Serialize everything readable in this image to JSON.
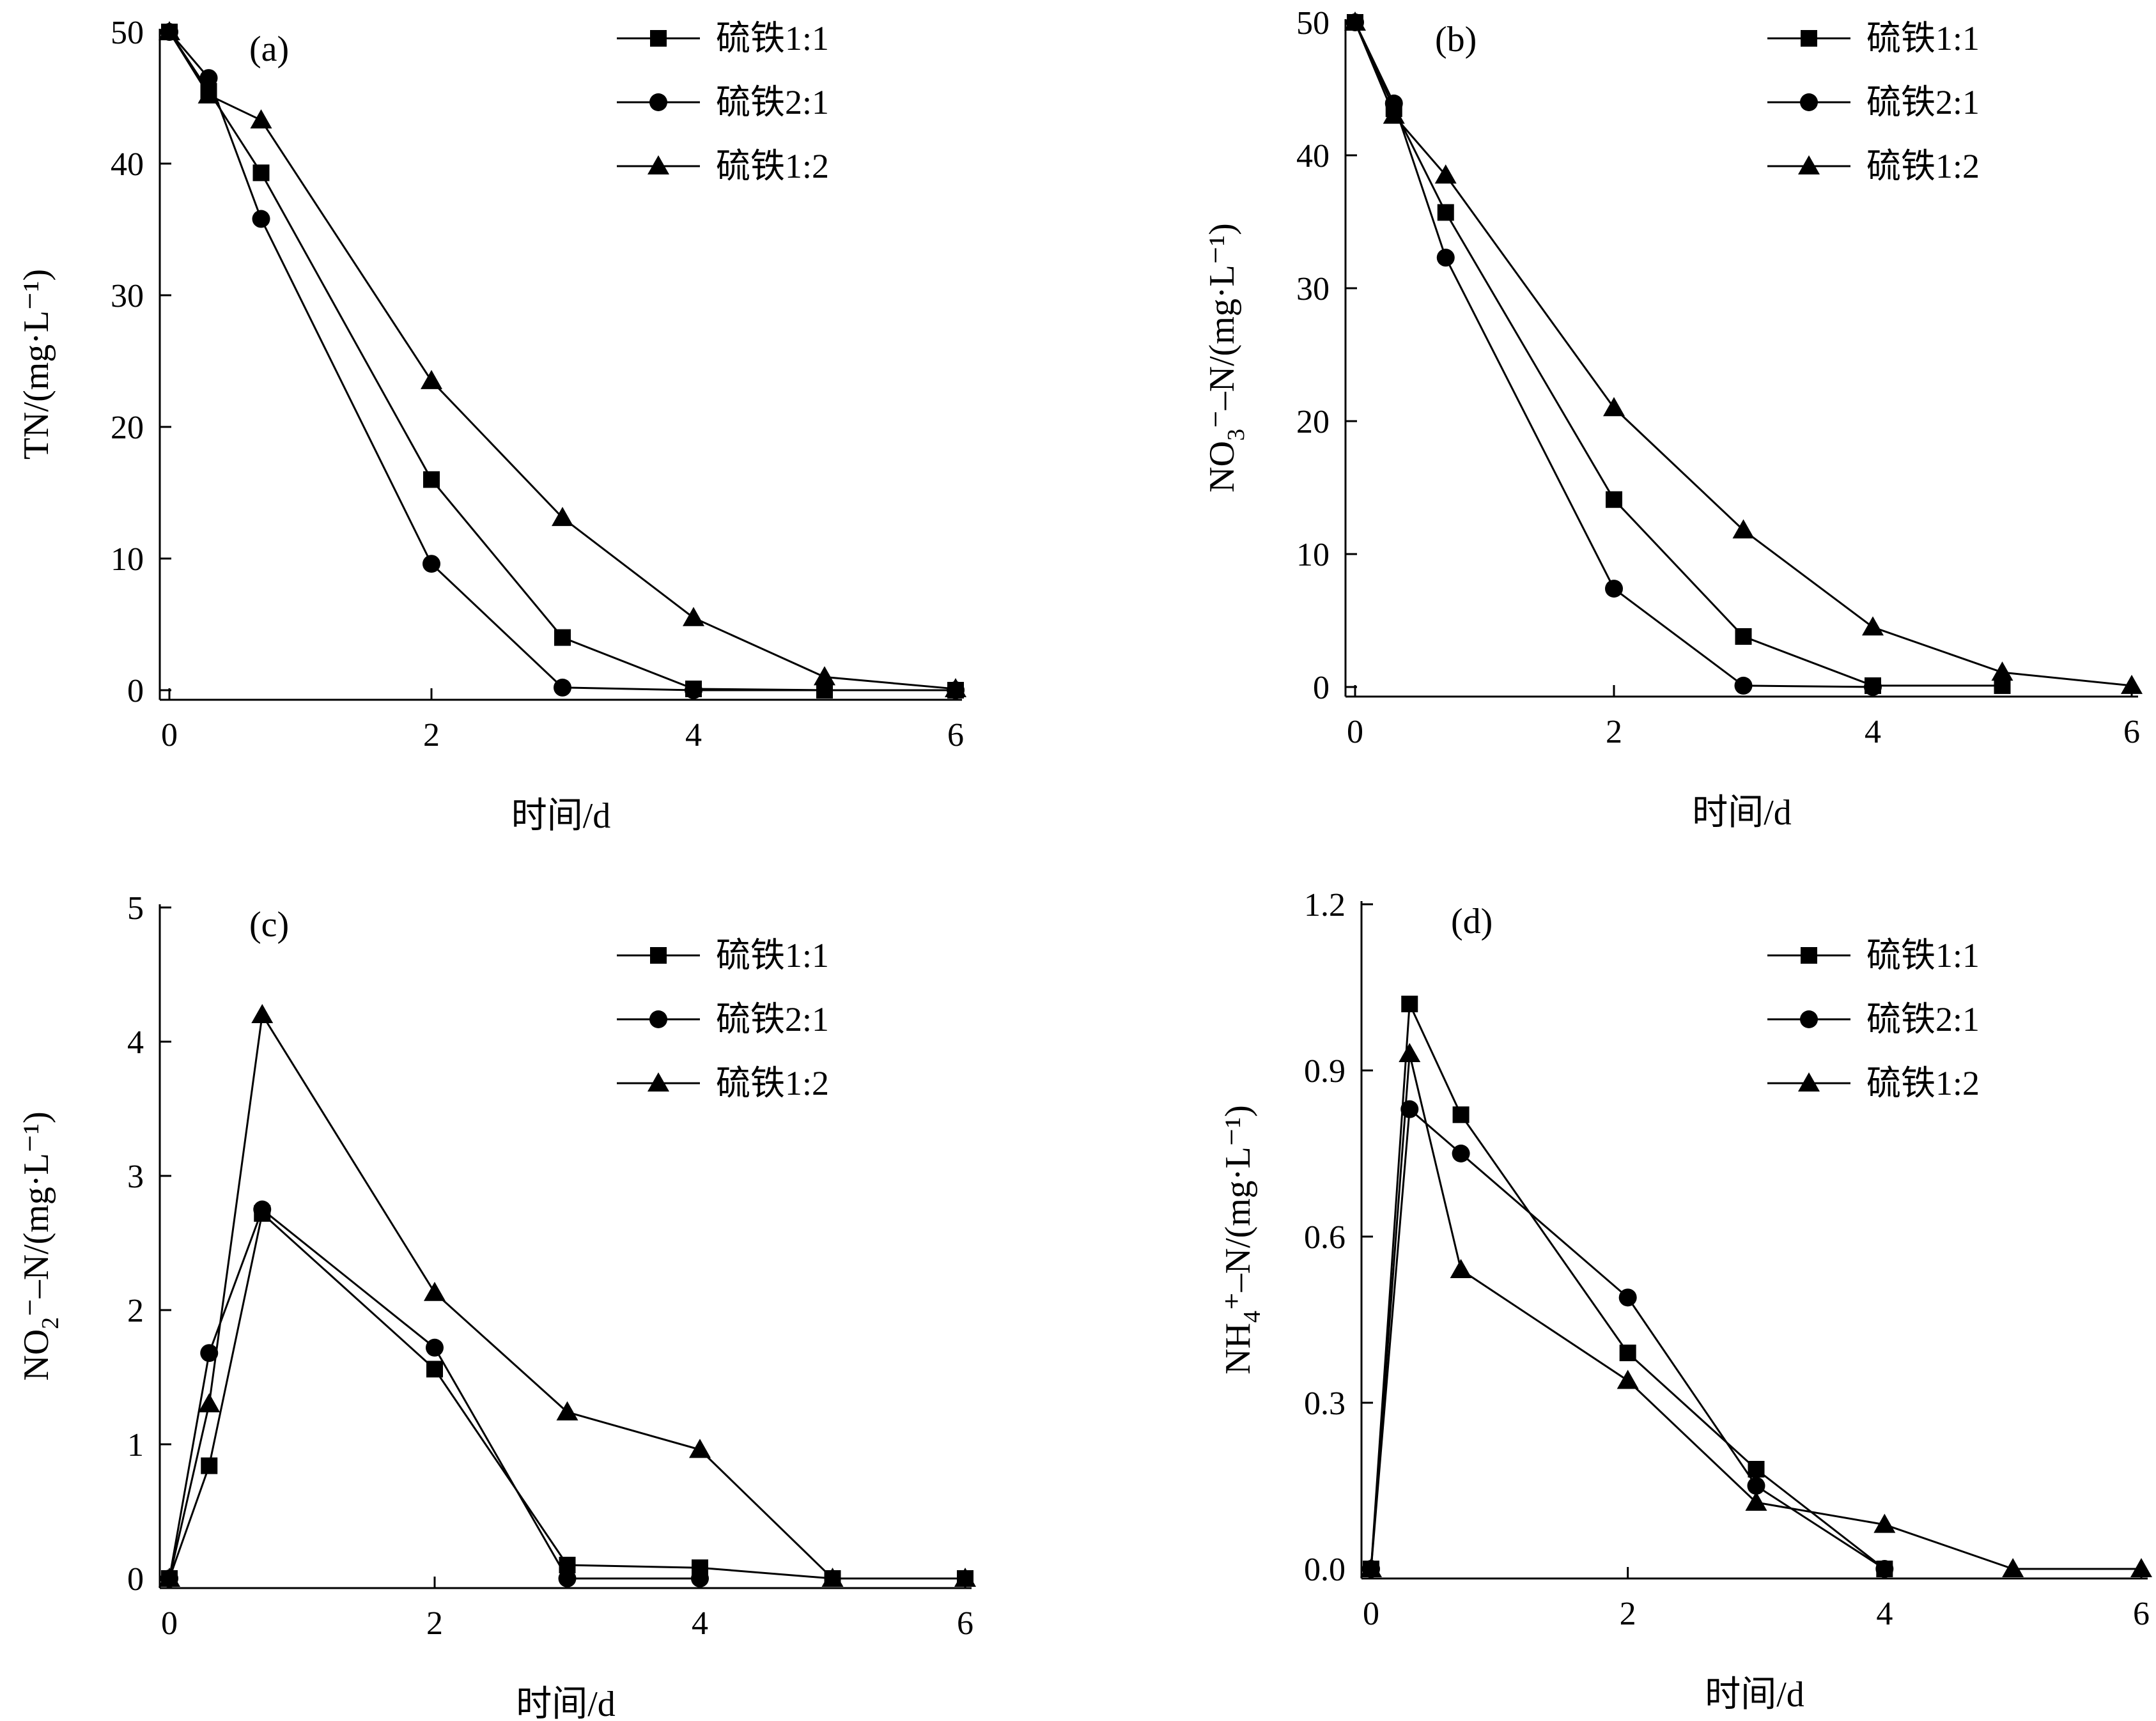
{
  "chart_data": [
    {
      "type": "line",
      "panel_label": "(a)",
      "ylabel": "TN/(mg·L⁻¹)",
      "xlabel": "时间/d",
      "xlim": [
        0,
        6
      ],
      "ylim": [
        0,
        50
      ],
      "xticks": [
        0,
        2,
        4,
        6
      ],
      "yticks": [
        0,
        10,
        20,
        30,
        40,
        50
      ],
      "legend_position": "top-right",
      "series": [
        {
          "name": "硫铁1:1",
          "marker": "square",
          "x": [
            0,
            0.3,
            0.7,
            2,
            3,
            4,
            5,
            6
          ],
          "y": [
            50,
            45.5,
            39.3,
            16.0,
            4.0,
            0.1,
            0.0,
            0.0
          ]
        },
        {
          "name": "硫铁2:1",
          "marker": "circle",
          "x": [
            0,
            0.3,
            0.7,
            2,
            3,
            4,
            6
          ],
          "y": [
            50,
            46.5,
            35.8,
            9.6,
            0.2,
            0.0,
            0.0
          ]
        },
        {
          "name": "硫铁1:2",
          "marker": "triangle",
          "x": [
            0,
            0.3,
            0.7,
            2,
            3,
            4,
            5,
            6
          ],
          "y": [
            50,
            45.2,
            43.3,
            23.5,
            13.1,
            5.5,
            1.0,
            0.1
          ]
        }
      ]
    },
    {
      "type": "line",
      "panel_label": "(b)",
      "ylabel_main": "NO",
      "ylabel_sub": "3",
      "ylabel_rest": "⁻–N/(mg·L⁻¹)",
      "xlabel": "时间/d",
      "xlim": [
        0,
        6
      ],
      "ylim": [
        0,
        50
      ],
      "xticks": [
        0,
        2,
        4,
        6
      ],
      "yticks": [
        0,
        10,
        20,
        30,
        40,
        50
      ],
      "legend_position": "top-right",
      "series": [
        {
          "name": "硫铁1:1",
          "marker": "square",
          "x": [
            0,
            0.3,
            0.7,
            2,
            3,
            4,
            5
          ],
          "y": [
            50,
            43.5,
            35.7,
            14.1,
            3.8,
            0.1,
            0.1
          ]
        },
        {
          "name": "硫铁2:1",
          "marker": "circle",
          "x": [
            0,
            0.3,
            0.7,
            2,
            3,
            4
          ],
          "y": [
            50,
            43.9,
            32.3,
            7.4,
            0.1,
            0.0
          ]
        },
        {
          "name": "硫铁1:2",
          "marker": "triangle",
          "x": [
            0,
            0.3,
            0.7,
            2,
            3,
            4,
            5,
            6
          ],
          "y": [
            50,
            43.0,
            38.5,
            21.0,
            11.8,
            4.5,
            1.1,
            0.1
          ]
        }
      ]
    },
    {
      "type": "line",
      "panel_label": "(c)",
      "ylabel_main": "NO",
      "ylabel_sub": "2",
      "ylabel_rest": "⁻–N/(mg·L⁻¹)",
      "xlabel": "时间/d",
      "xlim": [
        0,
        6
      ],
      "ylim": [
        0,
        5
      ],
      "xticks": [
        0,
        2,
        4,
        6
      ],
      "yticks": [
        0,
        1,
        2,
        3,
        4,
        5
      ],
      "legend_position": "top-right",
      "series": [
        {
          "name": "硫铁1:1",
          "marker": "square",
          "x": [
            0,
            0.3,
            0.7,
            2,
            3,
            4,
            5,
            6
          ],
          "y": [
            0,
            0.84,
            2.72,
            1.56,
            0.1,
            0.08,
            0.0,
            0.0
          ]
        },
        {
          "name": "硫铁2:1",
          "marker": "circle",
          "x": [
            0,
            0.3,
            0.7,
            2,
            3,
            4
          ],
          "y": [
            0,
            1.68,
            2.75,
            1.72,
            0.0,
            0.0
          ]
        },
        {
          "name": "硫铁1:2",
          "marker": "triangle",
          "x": [
            0,
            0.3,
            0.7,
            2,
            3,
            4,
            5,
            6
          ],
          "y": [
            0,
            1.3,
            4.2,
            2.13,
            1.24,
            0.96,
            0.0,
            0.0
          ]
        }
      ]
    },
    {
      "type": "line",
      "panel_label": "(d)",
      "ylabel_main": "NH",
      "ylabel_sub": "4",
      "ylabel_rest": "⁺–N/(mg·L⁻¹)",
      "xlabel": "时间/d",
      "xlim": [
        0,
        6
      ],
      "ylim": [
        0,
        1.2
      ],
      "xticks": [
        0,
        2,
        4,
        6
      ],
      "yticks": [
        0.0,
        0.3,
        0.6,
        0.9,
        1.2
      ],
      "ytick_labels": [
        "0.0",
        "0.3",
        "0.6",
        "0.9",
        "1.2"
      ],
      "legend_position": "top-right",
      "series": [
        {
          "name": "硫铁1:1",
          "marker": "square",
          "x": [
            0,
            0.3,
            0.7,
            2,
            3,
            4
          ],
          "y": [
            0,
            1.02,
            0.82,
            0.39,
            0.18,
            0.0
          ]
        },
        {
          "name": "硫铁2:1",
          "marker": "circle",
          "x": [
            0,
            0.3,
            0.7,
            2,
            3,
            4
          ],
          "y": [
            0,
            0.83,
            0.75,
            0.49,
            0.15,
            0.0
          ]
        },
        {
          "name": "硫铁1:2",
          "marker": "triangle",
          "x": [
            0,
            0.3,
            0.7,
            2,
            3,
            4,
            5,
            6
          ],
          "y": [
            0,
            0.93,
            0.54,
            0.34,
            0.12,
            0.08,
            0.0,
            0.0
          ]
        }
      ]
    }
  ]
}
